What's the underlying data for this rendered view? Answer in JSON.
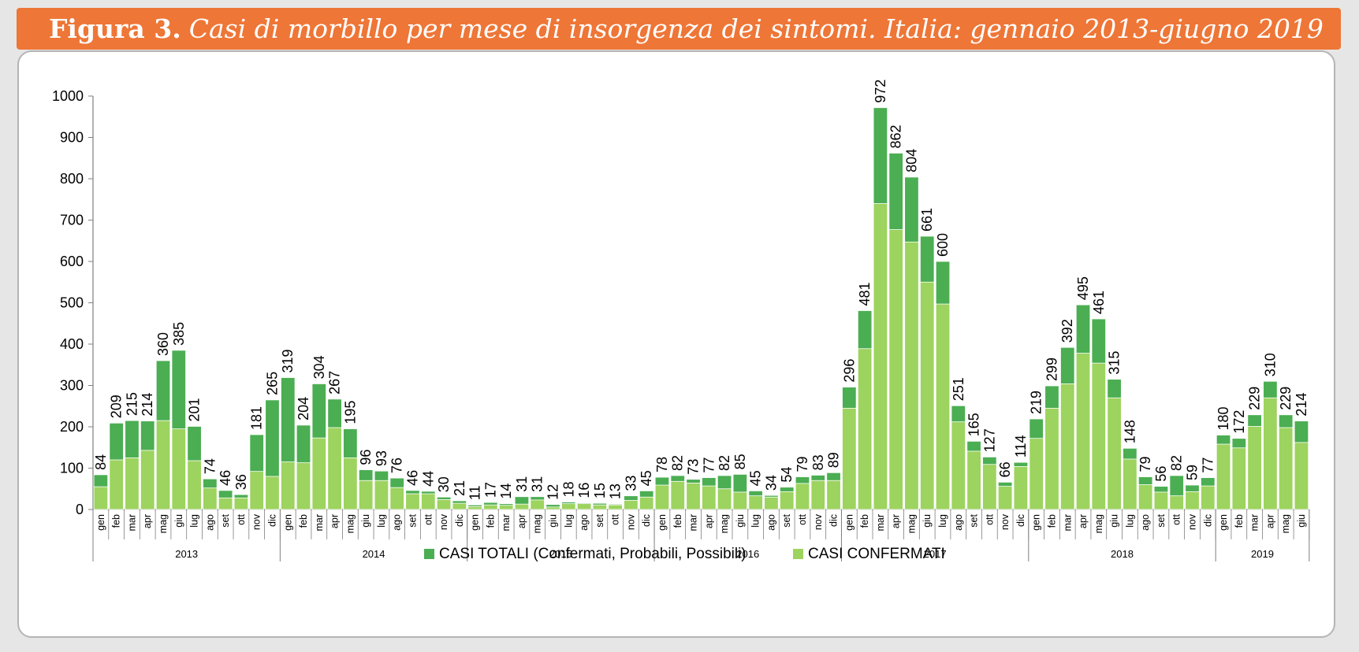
{
  "header": {
    "prefix": "Figura 3.",
    "title": "Casi di morbillo per mese di insorgenza dei sintomi. Italia: gennaio 2013-giugno 2019"
  },
  "colors": {
    "header": "#ee7637",
    "totali": "#4bae52",
    "confermati": "#9dd35f",
    "axis": "#7f7f7f"
  },
  "chart_data": {
    "type": "bar",
    "stacked": "overlay",
    "ylim": [
      0,
      1000
    ],
    "yticks": [
      0,
      100,
      200,
      300,
      400,
      500,
      600,
      700,
      800,
      900,
      1000
    ],
    "grid": false,
    "legend_position": "bottom",
    "months": [
      "gen",
      "feb",
      "mar",
      "apr",
      "mag",
      "giu",
      "lug",
      "ago",
      "set",
      "ott",
      "nov",
      "dic"
    ],
    "years": [
      {
        "label": "2013",
        "months": 12
      },
      {
        "label": "2014",
        "months": 12
      },
      {
        "label": "2015",
        "months": 12
      },
      {
        "label": "2016",
        "months": 12
      },
      {
        "label": "2017",
        "months": 12
      },
      {
        "label": "2018",
        "months": 12
      },
      {
        "label": "2019",
        "months": 6
      }
    ],
    "series": [
      {
        "name": "CASI TOTALI (Confermati, Probabili, Possibili)",
        "color": "#4bae52",
        "values": [
          84,
          209,
          215,
          214,
          360,
          385,
          201,
          74,
          46,
          36,
          181,
          265,
          319,
          204,
          304,
          267,
          195,
          96,
          93,
          76,
          46,
          44,
          30,
          21,
          11,
          17,
          14,
          31,
          31,
          12,
          18,
          16,
          15,
          13,
          33,
          45,
          78,
          82,
          73,
          77,
          82,
          85,
          45,
          34,
          54,
          79,
          83,
          89,
          296,
          481,
          972,
          862,
          804,
          661,
          600,
          251,
          165,
          127,
          66,
          114,
          219,
          299,
          392,
          495,
          461,
          315,
          148,
          79,
          56,
          82,
          59,
          77,
          180,
          172,
          229,
          310,
          229,
          214
        ]
      },
      {
        "name": "CASI CONFERMATI",
        "color": "#9dd35f",
        "values": [
          55,
          120,
          125,
          143,
          215,
          195,
          118,
          52,
          28,
          28,
          92,
          80,
          115,
          113,
          173,
          198,
          125,
          70,
          70,
          53,
          38,
          38,
          24,
          15,
          7,
          11,
          10,
          13,
          23,
          6,
          14,
          14,
          11,
          11,
          22,
          30,
          59,
          68,
          64,
          57,
          50,
          42,
          33,
          30,
          43,
          63,
          70,
          70,
          245,
          389,
          740,
          677,
          647,
          550,
          497,
          212,
          141,
          109,
          56,
          104,
          172,
          245,
          304,
          378,
          354,
          270,
          122,
          60,
          42,
          33,
          43,
          57,
          158,
          149,
          201,
          270,
          198,
          162
        ]
      }
    ]
  }
}
